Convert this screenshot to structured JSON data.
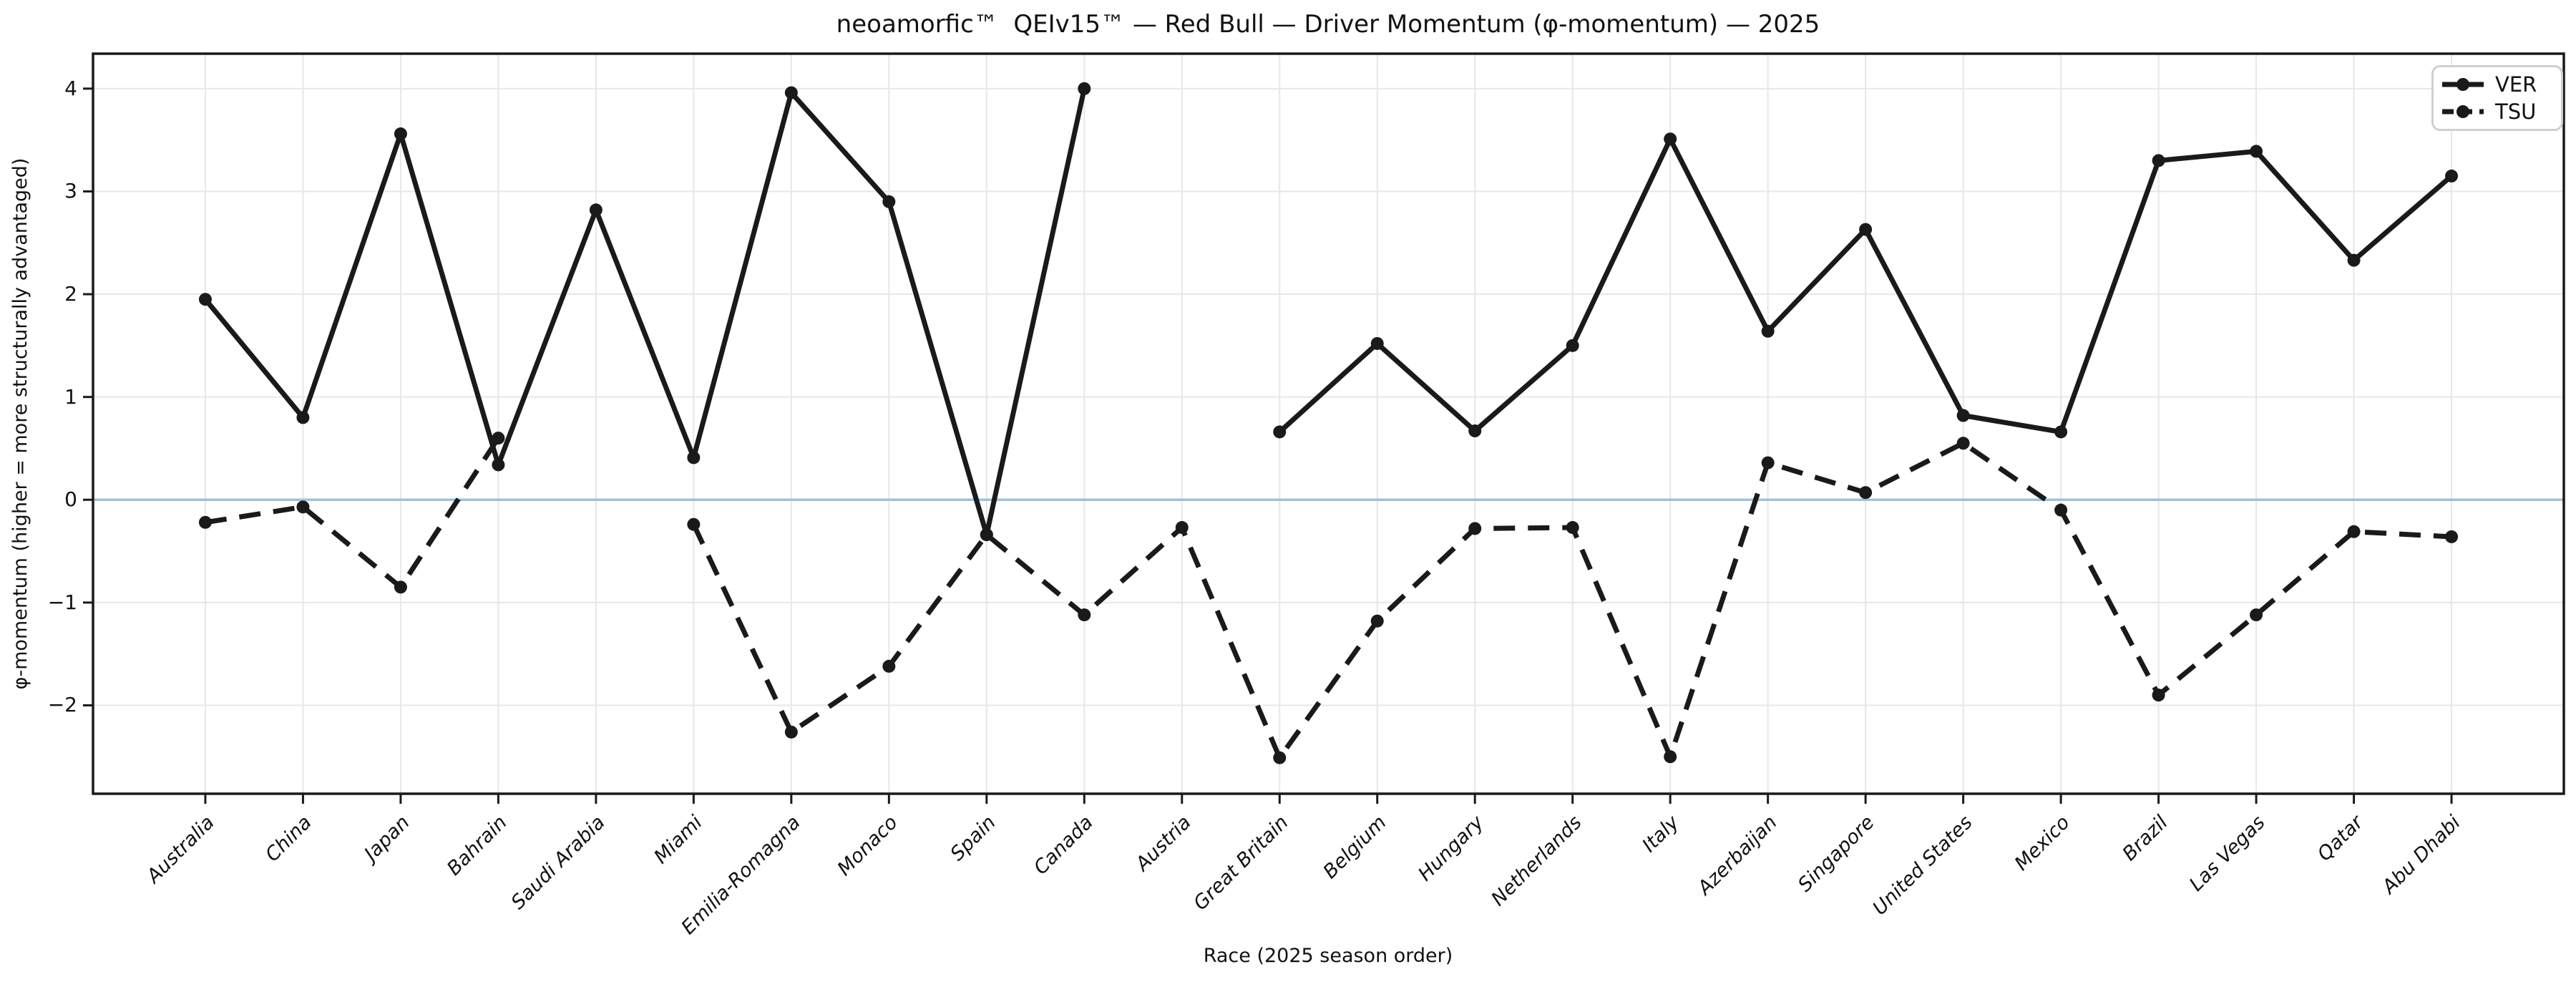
{
  "title": "neoamorfic™  QEIv15™ — Red Bull — Driver Momentum (φ-momentum) — 2025",
  "colors": {
    "series_line": "#1a1a1a",
    "zero_line": "#9fc2dd",
    "grid_line": "#e7e7e7",
    "spine": "#1a1a1a",
    "legend_border": "#cfcfcf"
  },
  "legend": {
    "position": "upper right",
    "items": [
      {
        "label": "VER",
        "style": "solid"
      },
      {
        "label": "TSU",
        "style": "dashed"
      }
    ]
  },
  "chart_data": {
    "type": "line",
    "title": "neoamorfic™  QEIv15™ — Red Bull — Driver Momentum (φ-momentum) — 2025",
    "xlabel": "Race (2025 season order)",
    "ylabel": "φ-momentum (higher = more structurally advantaged)",
    "categories": [
      "Australia",
      "China",
      "Japan",
      "Bahrain",
      "Saudi Arabia",
      "Miami",
      "Emilia-Romagna",
      "Monaco",
      "Spain",
      "Canada",
      "Austria",
      "Great Britain",
      "Belgium",
      "Hungary",
      "Netherlands",
      "Italy",
      "Azerbaijan",
      "Singapore",
      "United States",
      "Mexico",
      "Brazil",
      "Las Vegas",
      "Qatar",
      "Abu Dhabi"
    ],
    "series": [
      {
        "name": "VER",
        "style": "solid",
        "values": [
          1.95,
          0.8,
          3.56,
          0.34,
          2.82,
          0.41,
          3.96,
          2.9,
          -0.34,
          4.0,
          null,
          0.66,
          1.52,
          0.67,
          1.5,
          3.51,
          1.64,
          2.63,
          0.82,
          0.66,
          3.3,
          3.39,
          2.33,
          3.15
        ]
      },
      {
        "name": "TSU",
        "style": "dashed",
        "values": [
          -0.22,
          -0.07,
          -0.85,
          0.6,
          null,
          -0.24,
          -2.26,
          -1.62,
          -0.34,
          -1.12,
          -0.27,
          -2.51,
          -1.18,
          -0.28,
          -0.27,
          -2.5,
          0.36,
          0.07,
          0.55,
          -0.1,
          -1.9,
          -1.12,
          -0.31,
          -0.36
        ]
      }
    ],
    "yticks": [
      -2,
      -1,
      0,
      1,
      2,
      3,
      4
    ],
    "ylim": [
      -2.86,
      4.34
    ],
    "grid": true,
    "zero_line": 0,
    "legend_position": "upper right"
  }
}
